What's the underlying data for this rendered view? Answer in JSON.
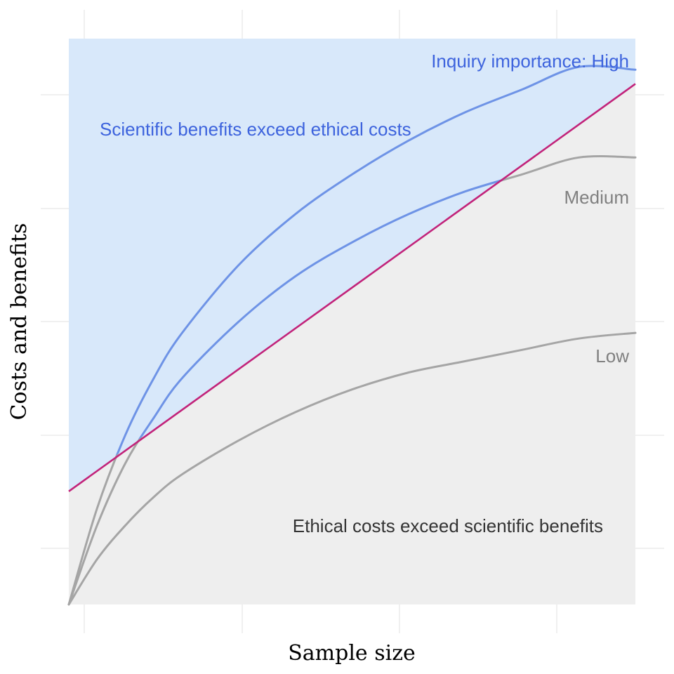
{
  "chart_data": {
    "type": "line",
    "xlabel": "Sample size",
    "ylabel": "Costs and benefits",
    "xlim": [
      0,
      1
    ],
    "ylim": [
      0,
      1
    ],
    "tick_labels_shown": false,
    "grid": true,
    "regions": [
      {
        "label": "Scientific benefits exceed ethical costs",
        "color": "#d8e8fa",
        "label_color": "#3d63dd"
      },
      {
        "label": "Ethical costs exceed scientific benefits",
        "color": "#eeeeee",
        "label_color": "#333333"
      }
    ],
    "ethical_cost_line": {
      "color": "#c2237a",
      "x": [
        0,
        1
      ],
      "y": [
        0.2,
        0.92
      ]
    },
    "series": [
      {
        "name": "Inquiry importance: High",
        "color": "#6e93e6",
        "x": [
          0,
          0.05,
          0.1,
          0.15,
          0.2,
          0.3,
          0.4,
          0.5,
          0.6,
          0.7,
          0.8,
          0.9,
          1.0
        ],
        "y": [
          0,
          0.17,
          0.3,
          0.4,
          0.48,
          0.6,
          0.69,
          0.76,
          0.82,
          0.87,
          0.91,
          0.95,
          0.945
        ]
      },
      {
        "name": "Medium",
        "color": "#a5a5a5",
        "x": [
          0,
          0.05,
          0.1,
          0.15,
          0.2,
          0.3,
          0.4,
          0.5,
          0.6,
          0.7,
          0.8,
          0.9,
          1.0
        ],
        "y": [
          0,
          0.14,
          0.25,
          0.33,
          0.4,
          0.5,
          0.58,
          0.64,
          0.69,
          0.73,
          0.76,
          0.79,
          0.79
        ]
      },
      {
        "name": "Low",
        "color": "#a5a5a5",
        "x": [
          0,
          0.05,
          0.1,
          0.15,
          0.2,
          0.3,
          0.4,
          0.5,
          0.6,
          0.7,
          0.8,
          0.9,
          1.0
        ],
        "y": [
          0,
          0.08,
          0.14,
          0.19,
          0.23,
          0.29,
          0.34,
          0.38,
          0.41,
          0.43,
          0.45,
          0.47,
          0.48
        ]
      }
    ]
  }
}
